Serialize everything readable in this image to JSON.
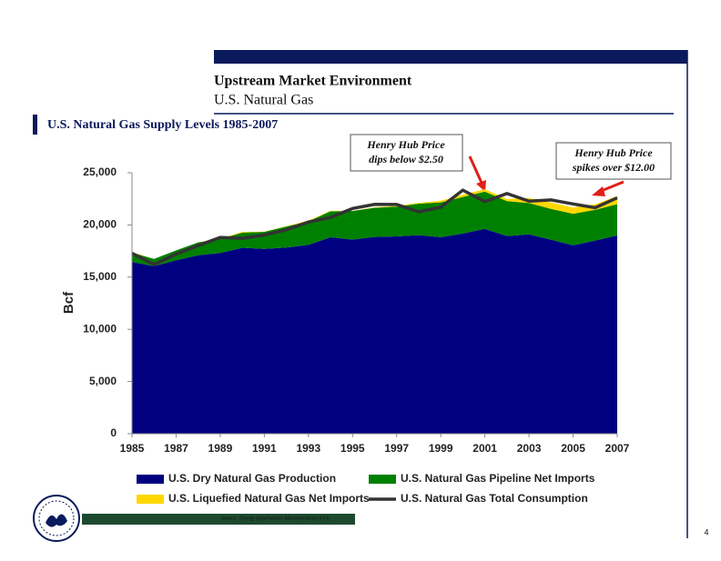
{
  "header": {
    "title": "Upstream Market Environment",
    "subtitle": "U.S. Natural Gas"
  },
  "chart_data": {
    "type": "area",
    "stacked": true,
    "title": "U.S. Natural Gas Supply Levels 1985-2007",
    "y_label": "Bcf",
    "x": [
      1985,
      1986,
      1987,
      1988,
      1989,
      1990,
      1991,
      1992,
      1993,
      1994,
      1995,
      1996,
      1997,
      1998,
      1999,
      2000,
      2001,
      2002,
      2003,
      2004,
      2005,
      2006,
      2007
    ],
    "xlim": [
      1985,
      2007
    ],
    "xticks": [
      1985,
      1987,
      1989,
      1991,
      1993,
      1995,
      1997,
      1999,
      2001,
      2003,
      2005,
      2007
    ],
    "ylim": [
      0,
      25000
    ],
    "yticks": [
      0,
      {
        "value": 5000,
        "label": "5,000"
      },
      {
        "value": 10000,
        "label": "10,000"
      },
      {
        "value": 15000,
        "label": "15,000"
      },
      {
        "value": 20000,
        "label": "20,000"
      },
      {
        "value": 25000,
        "label": "25,000"
      }
    ],
    "grid": false,
    "series": [
      {
        "name": "U.S. Dry Natural Gas Production",
        "type": "area",
        "color": "#000080",
        "values": [
          16450,
          16060,
          16620,
          17100,
          17310,
          17810,
          17700,
          17840,
          18100,
          18820,
          18600,
          18850,
          18900,
          19020,
          18830,
          19180,
          19620,
          18930,
          19100,
          18590,
          18050,
          18500,
          19000
        ]
      },
      {
        "name": "U.S. Natural Gas Pipeline Net Imports",
        "type": "area",
        "color": "#008000",
        "values": [
          900,
          690,
          940,
          1220,
          1340,
          1450,
          1640,
          2010,
          2240,
          2490,
          2740,
          2800,
          2850,
          3020,
          3330,
          3500,
          3570,
          3350,
          3000,
          2950,
          3020,
          2950,
          3000
        ]
      },
      {
        "name": "U.S. Liquefied Natural Gas Net Imports",
        "type": "area",
        "color": "#ffd700",
        "values": [
          50,
          0,
          0,
          20,
          40,
          80,
          20,
          40,
          80,
          40,
          10,
          40,
          70,
          70,
          160,
          220,
          230,
          210,
          480,
          620,
          600,
          530,
          770
        ]
      },
      {
        "name": "U.S. Natural Gas Total Consumption",
        "type": "line",
        "color": "#333333",
        "values": [
          17280,
          16220,
          17210,
          18030,
          18800,
          18720,
          19040,
          19540,
          20280,
          20710,
          21580,
          21970,
          21960,
          21260,
          21700,
          23330,
          22240,
          23010,
          22280,
          22400,
          22010,
          21650,
          22600
        ]
      }
    ],
    "annotations": [
      {
        "lines": [
          "Henry Hub Price",
          "dips below $2.50"
        ]
      },
      {
        "lines": [
          "Henry Hub Price",
          "spikes over $12.00"
        ]
      }
    ]
  },
  "source": "Source:  Energy Information Administration (EIA)",
  "page_number": "4"
}
